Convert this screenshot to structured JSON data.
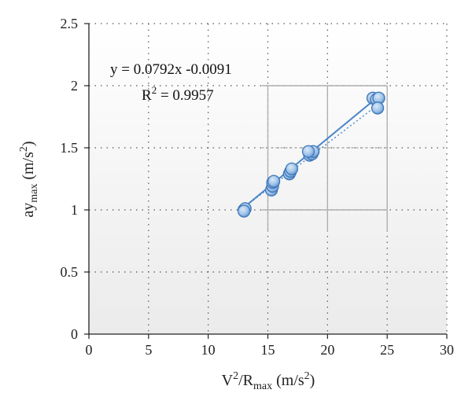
{
  "chart_data": {
    "type": "scatter",
    "xlabel": {
      "base": "V",
      "sup": "2",
      "mid": "/R",
      "sub": "max",
      "unit_open": " (m/s",
      "unit_sup": "2",
      "unit_close": ")"
    },
    "ylabel": {
      "base": "ay",
      "sub": "max",
      "unit_open": " (m/s",
      "unit_sup": "2",
      "unit_close": ")"
    },
    "xlim": [
      0,
      30
    ],
    "ylim": [
      0,
      2.5
    ],
    "xticks": [
      "0",
      "5",
      "10",
      "15",
      "20",
      "25",
      "30"
    ],
    "yticks": [
      "0",
      "0.5",
      "1",
      "1.5",
      "2",
      "2.5"
    ],
    "grid": true,
    "series": [
      {
        "points": [
          [
            13.0,
            1.0
          ],
          [
            13.1,
            1.01
          ],
          [
            13.0,
            0.99
          ],
          [
            15.3,
            1.16
          ],
          [
            15.4,
            1.19
          ],
          [
            15.4,
            1.22
          ],
          [
            15.5,
            1.23
          ],
          [
            16.8,
            1.29
          ],
          [
            16.9,
            1.31
          ],
          [
            17.0,
            1.33
          ],
          [
            18.5,
            1.44
          ],
          [
            18.7,
            1.45
          ],
          [
            18.8,
            1.47
          ],
          [
            18.4,
            1.47
          ],
          [
            23.8,
            1.9
          ],
          [
            24.1,
            1.89
          ],
          [
            24.3,
            1.9
          ],
          [
            24.2,
            1.82
          ]
        ],
        "color": "#5b9bd5"
      }
    ],
    "trendline": {
      "slope": 0.0792,
      "intercept": -0.0091,
      "x_range": [
        13,
        24.3
      ],
      "equation_text": "y = 0.0792x -0.0091",
      "r2_label": "R",
      "r2_sup": "2",
      "r2_value": " = 0.9957",
      "color": "#4a86c8"
    },
    "reference_box": {
      "x": [
        15,
        20,
        25
      ],
      "y": [
        1.0,
        1.5,
        2.0
      ],
      "color": "#b0b0b0"
    }
  }
}
